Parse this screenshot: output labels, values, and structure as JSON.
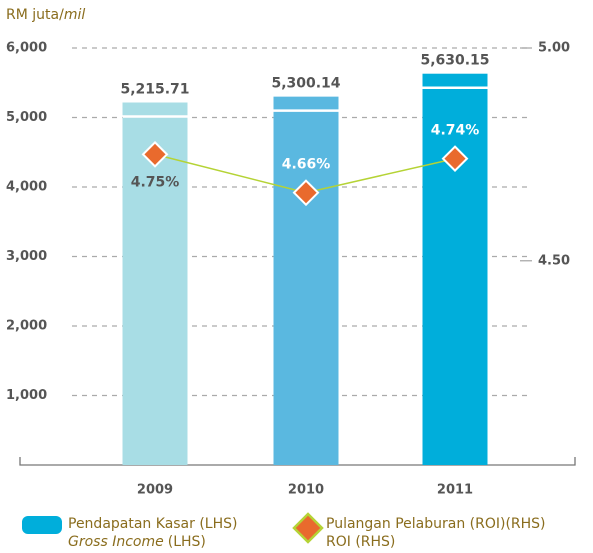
{
  "chart_data": {
    "type": "bar_line",
    "y_label": "RM juta/",
    "y_label_italic": "mil",
    "categories": [
      "2009",
      "2010",
      "2011"
    ],
    "series": [
      {
        "name": "Pendapatan Kasar (LHS)",
        "name_italic": "Gross Income",
        "name_suffix": "(LHS)",
        "colors": [
          "#a8dde5",
          "#5ab8e0",
          "#00aedb"
        ],
        "values": [
          5215.71,
          5300.14,
          5630.15
        ],
        "value_labels": [
          "5,215.71",
          "5,300.14",
          "5,630.15"
        ]
      },
      {
        "name": "Pulangan Pelaburan (ROI)(RHS)",
        "name_second": "ROI (RHS)",
        "axis": "y2",
        "color": "#b5d335",
        "marker_color": "#e96a2d",
        "values": [
          4.75,
          4.66,
          4.74
        ],
        "value_labels": [
          "4.75%",
          "4.66%",
          "4.74%"
        ]
      }
    ],
    "ylim": [
      0,
      6000
    ],
    "yticks": [
      {
        "value": 1000,
        "label": "1,000"
      },
      {
        "value": 2000,
        "label": "2,000"
      },
      {
        "value": 3000,
        "label": "3,000"
      },
      {
        "value": 4000,
        "label": "4,000"
      },
      {
        "value": 5000,
        "label": "5,000"
      },
      {
        "value": 6000,
        "label": "6,000"
      }
    ],
    "y2lim": [
      4.02,
      5.0
    ],
    "y2ticks": [
      {
        "value": 4.5,
        "label": "4.50"
      },
      {
        "value": 5.0,
        "label": "5.00"
      }
    ],
    "grid": true
  }
}
